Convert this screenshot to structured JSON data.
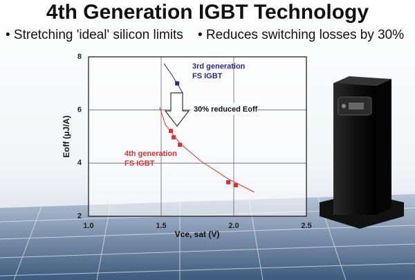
{
  "chart_data": {
    "type": "scatter",
    "title": "4th Generation IGBT Technology",
    "bullets": [
      "• Stretching 'ideal' silicon limits",
      "• Reduces switching losses by 30%"
    ],
    "x_label": "Vce, sat (V)",
    "y_label": "Eoff (μJ/A)",
    "xlim": [
      1.0,
      2.5
    ],
    "xticks": [
      {
        "value": 1.0,
        "label": "1.0"
      },
      {
        "value": 1.5,
        "label": "1.5"
      },
      {
        "value": 2.0,
        "label": "2.0"
      },
      {
        "value": 2.5,
        "label": "2.5"
      }
    ],
    "ylim": [
      2,
      8
    ],
    "yticks": [
      2,
      4,
      6,
      8
    ],
    "grid": true,
    "annotations": [
      "3rd generation",
      "FS IGBT",
      "30% reduced Eoff",
      "4th generation",
      "FS IGBT"
    ],
    "series": [
      {
        "color": "#2a2a8a",
        "x": [
          1.61
        ],
        "values": [
          7.0
        ],
        "fit_x": [
          1.52,
          1.57,
          1.61,
          1.65
        ],
        "fit_values": [
          7.74,
          7.35,
          7.0,
          6.62
        ]
      },
      {
        "color": "#e03030",
        "x": [
          1.567,
          1.586,
          1.629,
          1.962,
          2.014
        ],
        "values": [
          5.21,
          4.97,
          4.69,
          3.28,
          3.17
        ],
        "fit_x": [
          1.49,
          1.53,
          1.63,
          1.77,
          1.96,
          2.14
        ],
        "fit_values": [
          6.1,
          5.44,
          4.74,
          4.09,
          3.41,
          2.91
        ]
      }
    ]
  }
}
